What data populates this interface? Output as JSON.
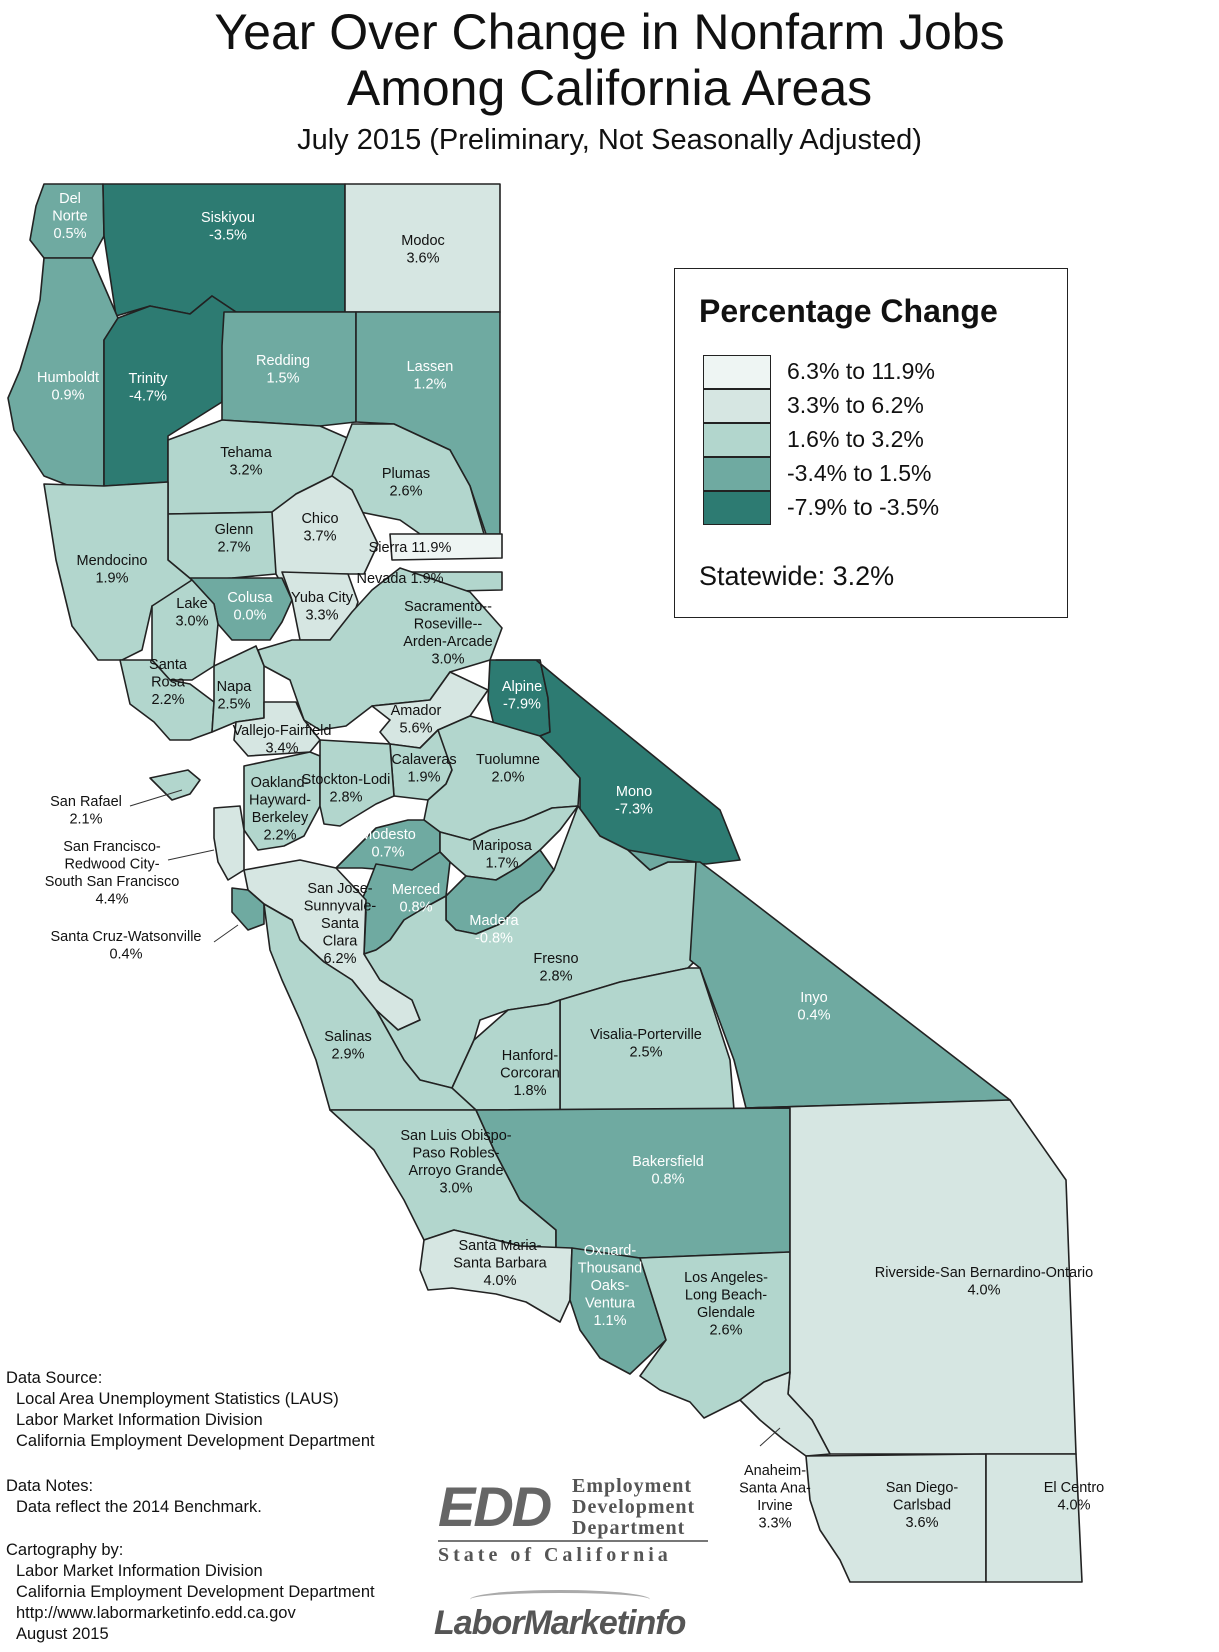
{
  "title_line1": "Year Over Change in Nonfarm Jobs",
  "title_line2": "Among California Areas",
  "subtitle": "July 2015 (Preliminary, Not Seasonally Adjusted)",
  "legend": {
    "title": "Percentage Change",
    "classes": [
      {
        "label": "6.3% to 11.9%",
        "color": "#eef5f3"
      },
      {
        "label": "3.3% to 6.2%",
        "color": "#d6e6e2"
      },
      {
        "label": "1.6% to 3.2%",
        "color": "#b2d6cd"
      },
      {
        "label": "-3.4% to 1.5%",
        "color": "#6faaa1"
      },
      {
        "label": "-7.9% to -3.5%",
        "color": "#2d7b72"
      }
    ],
    "statewide": "Statewide: 3.2%"
  },
  "areas": [
    {
      "name": "Del Norte",
      "value": "0.5%",
      "cls": 3
    },
    {
      "name": "Siskiyou",
      "value": "-3.5%",
      "cls": 4
    },
    {
      "name": "Modoc",
      "value": "3.6%",
      "cls": 1
    },
    {
      "name": "Humboldt",
      "value": "0.9%",
      "cls": 3
    },
    {
      "name": "Trinity",
      "value": "-4.7%",
      "cls": 4
    },
    {
      "name": "Redding",
      "value": "1.5%",
      "cls": 3
    },
    {
      "name": "Lassen",
      "value": "1.2%",
      "cls": 3
    },
    {
      "name": "Tehama",
      "value": "3.2%",
      "cls": 2
    },
    {
      "name": "Plumas",
      "value": "2.6%",
      "cls": 2
    },
    {
      "name": "Glenn",
      "value": "2.7%",
      "cls": 2
    },
    {
      "name": "Chico",
      "value": "3.7%",
      "cls": 1
    },
    {
      "name": "Sierra",
      "value": "11.9%",
      "cls": 0
    },
    {
      "name": "Nevada",
      "value": "1.9%",
      "cls": 2
    },
    {
      "name": "Mendocino",
      "value": "1.9%",
      "cls": 2
    },
    {
      "name": "Colusa",
      "value": "0.0%",
      "cls": 3
    },
    {
      "name": "Yuba City",
      "value": "3.3%",
      "cls": 1
    },
    {
      "name": "Lake",
      "value": "3.0%",
      "cls": 2
    },
    {
      "name": "Sacramento--Roseville--Arden-Arcade",
      "value": "3.0%",
      "cls": 2
    },
    {
      "name": "Santa Rosa",
      "value": "2.2%",
      "cls": 2
    },
    {
      "name": "Napa",
      "value": "2.5%",
      "cls": 2
    },
    {
      "name": "Alpine",
      "value": "-7.9%",
      "cls": 4
    },
    {
      "name": "Amador",
      "value": "5.6%",
      "cls": 1
    },
    {
      "name": "Vallejo-Fairfield",
      "value": "3.4%",
      "cls": 1
    },
    {
      "name": "Calaveras",
      "value": "1.9%",
      "cls": 2
    },
    {
      "name": "Tuolumne",
      "value": "2.0%",
      "cls": 2
    },
    {
      "name": "Mono",
      "value": "-7.3%",
      "cls": 4
    },
    {
      "name": "San Rafael",
      "value": "2.1%",
      "cls": 2
    },
    {
      "name": "Oakland-Hayward-Berkeley",
      "value": "2.2%",
      "cls": 2
    },
    {
      "name": "Stockton-Lodi",
      "value": "2.8%",
      "cls": 2
    },
    {
      "name": "Modesto",
      "value": "0.7%",
      "cls": 3
    },
    {
      "name": "Mariposa",
      "value": "1.7%",
      "cls": 2
    },
    {
      "name": "San Francisco-Redwood City-South San Francisco",
      "value": "4.4%",
      "cls": 1
    },
    {
      "name": "Merced",
      "value": "0.8%",
      "cls": 3
    },
    {
      "name": "San Jose-Sunnyvale-Santa Clara",
      "value": "6.2%",
      "cls": 1
    },
    {
      "name": "Madera",
      "value": "-0.8%",
      "cls": 3
    },
    {
      "name": "Santa Cruz-Watsonville",
      "value": "0.4%",
      "cls": 3
    },
    {
      "name": "Fresno",
      "value": "2.8%",
      "cls": 2
    },
    {
      "name": "Inyo",
      "value": "0.4%",
      "cls": 3
    },
    {
      "name": "Salinas",
      "value": "2.9%",
      "cls": 2
    },
    {
      "name": "Visalia-Porterville",
      "value": "2.5%",
      "cls": 2
    },
    {
      "name": "Hanford-Corcoran",
      "value": "1.8%",
      "cls": 2
    },
    {
      "name": "San Luis Obispo-Paso Robles-Arroyo Grande",
      "value": "3.0%",
      "cls": 2
    },
    {
      "name": "Bakersfield",
      "value": "0.8%",
      "cls": 3
    },
    {
      "name": "Santa Maria-Santa Barbara",
      "value": "4.0%",
      "cls": 1
    },
    {
      "name": "Oxnard-Thousand Oaks-Ventura",
      "value": "1.1%",
      "cls": 3
    },
    {
      "name": "Los Angeles-Long Beach-Glendale",
      "value": "2.6%",
      "cls": 2
    },
    {
      "name": "Riverside-San Bernardino-Ontario",
      "value": "4.0%",
      "cls": 1
    },
    {
      "name": "Anaheim-Santa Ana-Irvine",
      "value": "3.3%",
      "cls": 1
    },
    {
      "name": "San Diego-Carlsbad",
      "value": "3.6%",
      "cls": 1
    },
    {
      "name": "El Centro",
      "value": "4.0%",
      "cls": 1
    }
  ],
  "notes": {
    "source_head": "Data Source:",
    "source_lines": [
      "Local Area Unemployment Statistics (LAUS)",
      "Labor Market Information Division",
      "California Employment Development Department"
    ],
    "notes_head": "Data Notes:",
    "notes_lines": [
      "Data reflect the 2014 Benchmark."
    ],
    "carto_head": "Cartography by:",
    "carto_lines": [
      "Labor Market Information Division",
      "California Employment Development Department",
      "http://www.labormarketinfo.edd.ca.gov",
      "August 2015"
    ]
  },
  "edd": {
    "mark": "EDD",
    "line1": "Employment",
    "line2": "Development",
    "line3": "Department",
    "state": "State of California"
  },
  "lmi": "LaborMarketinfo"
}
